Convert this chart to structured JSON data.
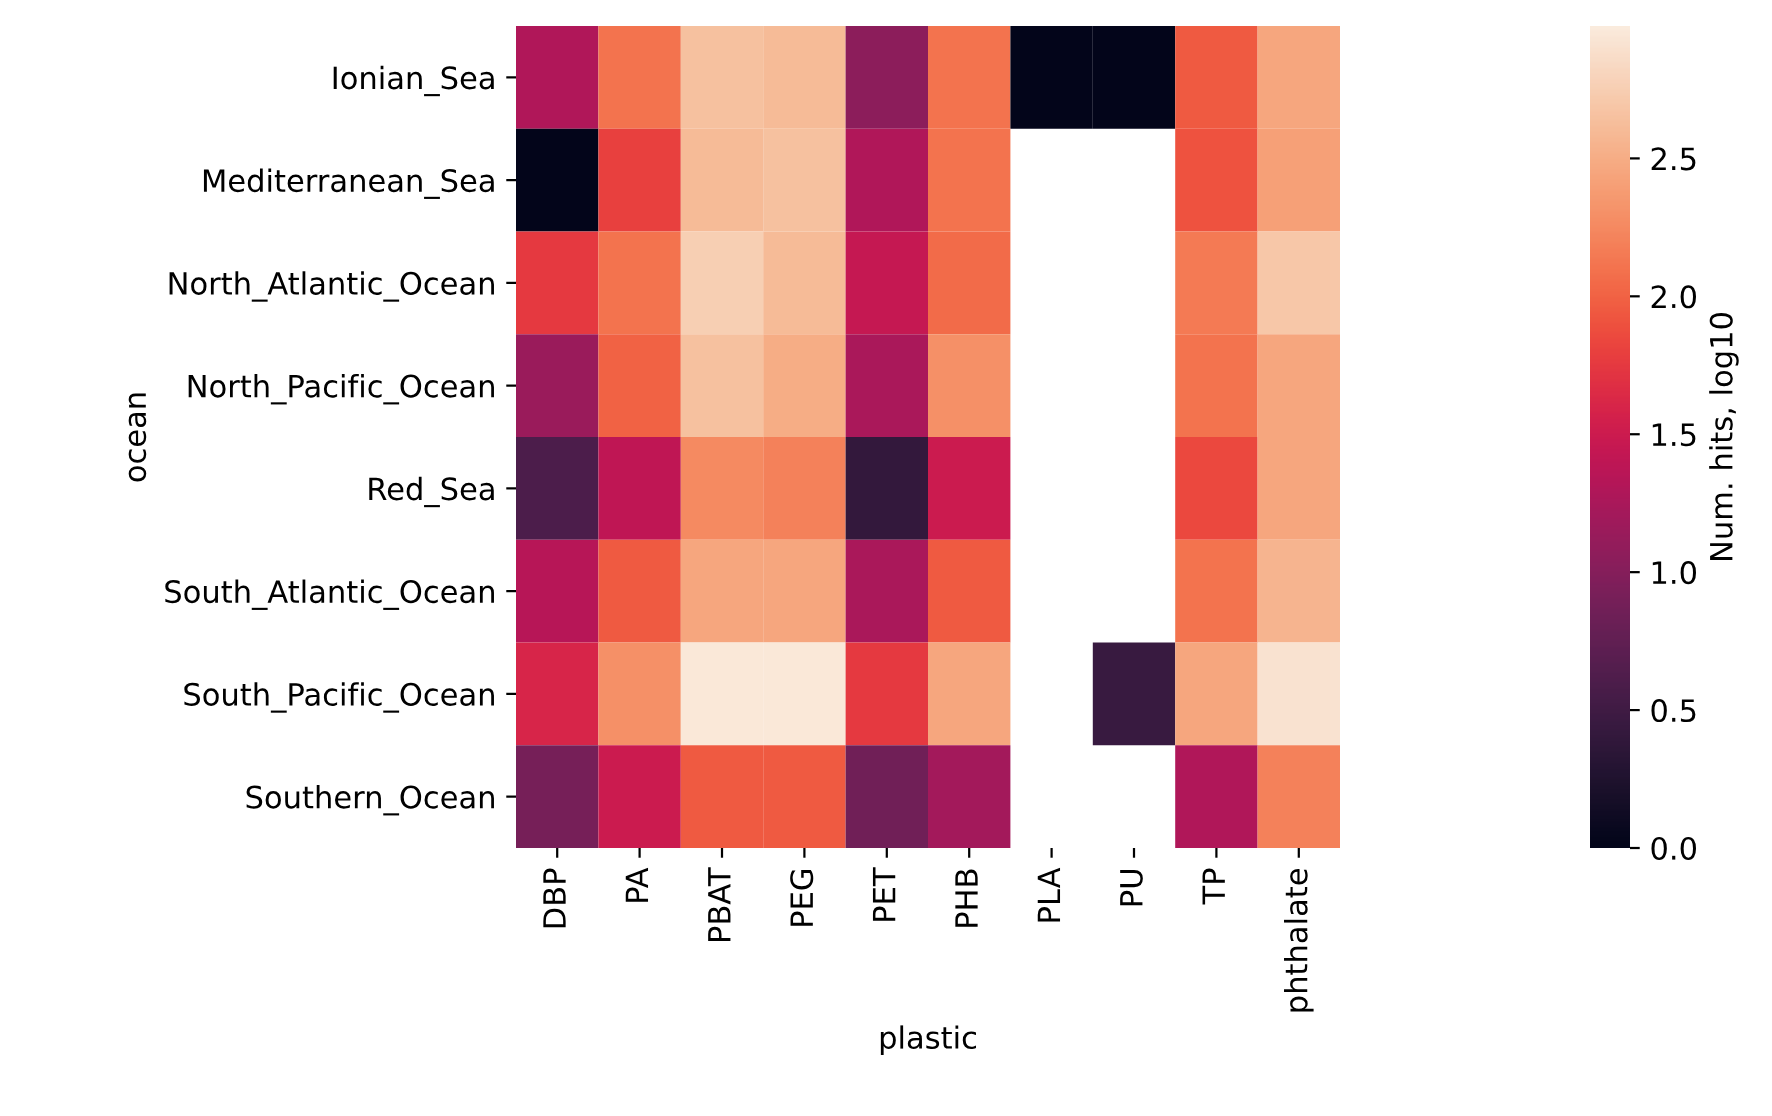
{
  "chart_data": {
    "type": "heatmap",
    "xlabel": "plastic",
    "ylabel": "ocean",
    "clabel": "Num. hits, log10",
    "categories": [
      "DBP",
      "PA",
      "PBAT",
      "PEG",
      "PET",
      "PHB",
      "PLA",
      "PU",
      "TP",
      "phthalate"
    ],
    "y_categories": [
      "Ionian_Sea",
      "Mediterranean_Sea",
      "North_Atlantic_Ocean",
      "North_Pacific_Ocean",
      "Red_Sea",
      "South_Atlantic_Ocean",
      "South_Pacific_Ocean",
      "Southern_Ocean"
    ],
    "cells": [
      [
        1.3,
        2.1,
        2.65,
        2.6,
        1.05,
        2.1,
        0,
        0,
        1.95,
        2.45
      ],
      [
        0,
        1.8,
        2.6,
        2.65,
        1.3,
        2.1,
        null,
        null,
        1.9,
        2.4
      ],
      [
        1.75,
        2.1,
        2.75,
        2.6,
        1.45,
        2.05,
        null,
        null,
        2.15,
        2.7
      ],
      [
        1.15,
        2.0,
        2.65,
        2.5,
        1.25,
        2.3,
        null,
        null,
        2.1,
        2.45
      ],
      [
        0.6,
        1.4,
        2.25,
        2.2,
        0.4,
        1.5,
        null,
        null,
        1.85,
        2.45
      ],
      [
        1.35,
        1.95,
        2.45,
        2.45,
        1.25,
        1.95,
        null,
        null,
        2.1,
        2.55
      ],
      [
        1.6,
        2.3,
        2.95,
        2.95,
        1.75,
        2.45,
        null,
        0.45,
        2.45,
        2.9
      ],
      [
        0.9,
        1.5,
        1.95,
        1.95,
        0.85,
        1.2,
        null,
        null,
        1.3,
        2.2
      ]
    ],
    "clim": [
      0,
      2.98
    ],
    "cticks": [
      {
        "value": 0,
        "label": "0.0"
      },
      0.5,
      {
        "value": 1,
        "label": "1.0"
      },
      1.5,
      {
        "value": 2,
        "label": "2.0"
      },
      2.5
    ]
  }
}
